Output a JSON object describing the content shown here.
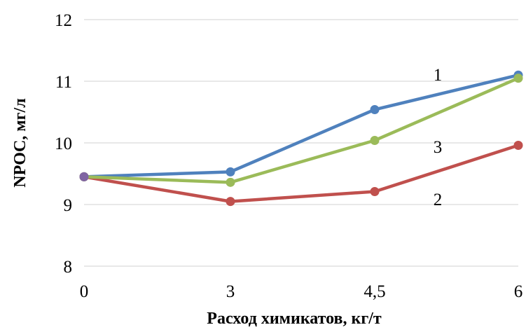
{
  "chart_data": {
    "type": "line",
    "categories": [
      "0",
      "3",
      "4,5",
      "6"
    ],
    "series": [
      {
        "name": "1",
        "values": [
          9.45,
          9.53,
          10.54,
          11.1
        ],
        "color": "#4f81bd"
      },
      {
        "name": "2",
        "values": [
          9.45,
          9.05,
          9.21,
          9.96
        ],
        "color": "#c0504d"
      },
      {
        "name": "3",
        "values": [
          9.45,
          9.36,
          10.04,
          11.05
        ],
        "color": "#9bbb59"
      }
    ],
    "first_point_color": "#8064a2",
    "xlabel": "Расход химикатов, кг/т",
    "ylabel": "NPOC, мг/л",
    "ylim": [
      8,
      12
    ],
    "yticks": [
      "8",
      "9",
      "10",
      "11",
      "12"
    ],
    "grid": true,
    "legend": "inline labels near line ends"
  }
}
